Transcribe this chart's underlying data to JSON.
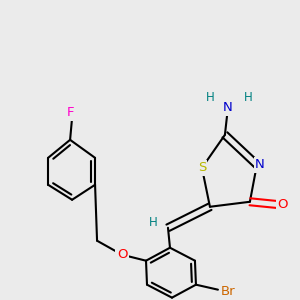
{
  "bg_color": "#ebebeb",
  "atom_colors": {
    "S": "#b8b800",
    "N": "#0000cc",
    "O": "#ff0000",
    "F": "#ff00cc",
    "Br": "#cc6600",
    "H": "#008080",
    "C": "#000000"
  },
  "bond_color": "#000000",
  "bond_width": 1.5,
  "font_size": 8.5
}
